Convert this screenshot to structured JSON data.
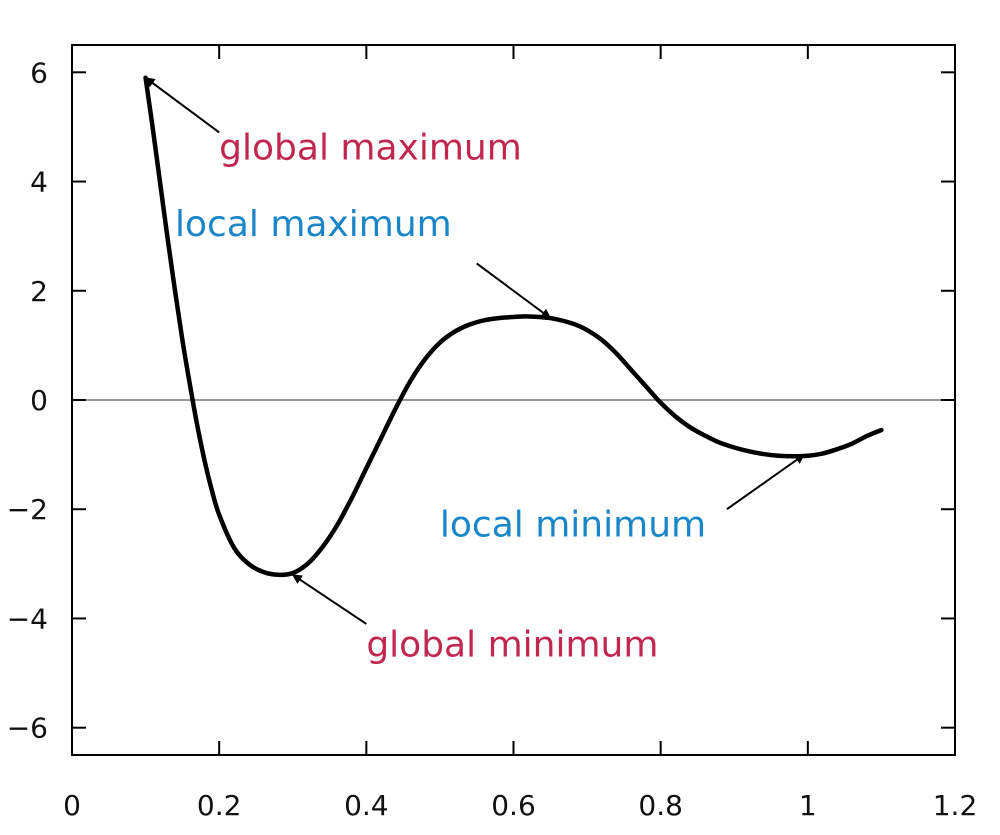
{
  "chart_data": {
    "type": "line",
    "title": "",
    "xlabel": "",
    "ylabel": "",
    "xlim": [
      0,
      1.2
    ],
    "ylim": [
      -6.5,
      6.5
    ],
    "grid": false,
    "legend": "none",
    "x_ticks": [
      {
        "value": 0,
        "label": "0"
      },
      {
        "value": 0.2,
        "label": "0.2"
      },
      {
        "value": 0.4,
        "label": "0.4"
      },
      {
        "value": 0.6,
        "label": "0.6"
      },
      {
        "value": 0.8,
        "label": "0.8"
      },
      {
        "value": 1,
        "label": "1"
      },
      {
        "value": 1.2,
        "label": "1.2"
      }
    ],
    "y_ticks": [
      {
        "value": 6,
        "label": "6"
      },
      {
        "value": 4,
        "label": "4"
      },
      {
        "value": 2,
        "label": "2"
      },
      {
        "value": 0,
        "label": "0"
      },
      {
        "value": -2,
        "label": "−2"
      },
      {
        "value": -4,
        "label": "−4"
      },
      {
        "value": -6,
        "label": "−6"
      }
    ],
    "zero_line": {
      "value": 0,
      "color": "#999999"
    },
    "series": [
      {
        "color": "#000000",
        "x": [
          0.1,
          0.11,
          0.12,
          0.13,
          0.14,
          0.15,
          0.16,
          0.17,
          0.18,
          0.19,
          0.2,
          0.22,
          0.24,
          0.26,
          0.28,
          0.3,
          0.32,
          0.34,
          0.36,
          0.38,
          0.4,
          0.42,
          0.44,
          0.46,
          0.48,
          0.5,
          0.52,
          0.54,
          0.56,
          0.58,
          0.6,
          0.62,
          0.65,
          0.68,
          0.7,
          0.72,
          0.74,
          0.76,
          0.78,
          0.8,
          0.82,
          0.84,
          0.86,
          0.88,
          0.9,
          0.92,
          0.94,
          0.96,
          0.98,
          1.0,
          1.02,
          1.04,
          1.06,
          1.08,
          1.1
        ],
        "y": [
          5.9,
          4.95,
          3.95,
          2.95,
          2.0,
          1.1,
          0.3,
          -0.45,
          -1.1,
          -1.65,
          -2.1,
          -2.7,
          -3.0,
          -3.15,
          -3.2,
          -3.17,
          -3.0,
          -2.7,
          -2.3,
          -1.8,
          -1.25,
          -0.7,
          -0.15,
          0.35,
          0.75,
          1.05,
          1.25,
          1.38,
          1.46,
          1.5,
          1.52,
          1.53,
          1.5,
          1.4,
          1.28,
          1.1,
          0.85,
          0.55,
          0.25,
          -0.05,
          -0.3,
          -0.5,
          -0.65,
          -0.78,
          -0.87,
          -0.94,
          -0.99,
          -1.02,
          -1.03,
          -1.02,
          -0.98,
          -0.9,
          -0.8,
          -0.66,
          -0.55
        ]
      }
    ],
    "annotations": [
      {
        "text": "global maximum",
        "color": "#c0274f",
        "point": [
          0.1,
          5.9
        ],
        "text_pos": [
          0.2,
          4.4
        ],
        "arrow_from": [
          0.2,
          4.9
        ]
      },
      {
        "text": "local maximum",
        "color": "#1a86c7",
        "point": [
          0.65,
          1.5
        ],
        "text_pos": [
          0.14,
          3.0
        ],
        "arrow_from": [
          0.55,
          2.5
        ]
      },
      {
        "text": "local minimum",
        "color": "#1a86c7",
        "point": [
          0.995,
          -1.0
        ],
        "text_pos": [
          0.5,
          -2.5
        ],
        "arrow_from": [
          0.89,
          -2.0
        ]
      },
      {
        "text": "global minimum",
        "color": "#c0274f",
        "point": [
          0.3,
          -3.2
        ],
        "text_pos": [
          0.4,
          -4.7
        ],
        "arrow_from": [
          0.4,
          -4.1
        ]
      }
    ]
  }
}
